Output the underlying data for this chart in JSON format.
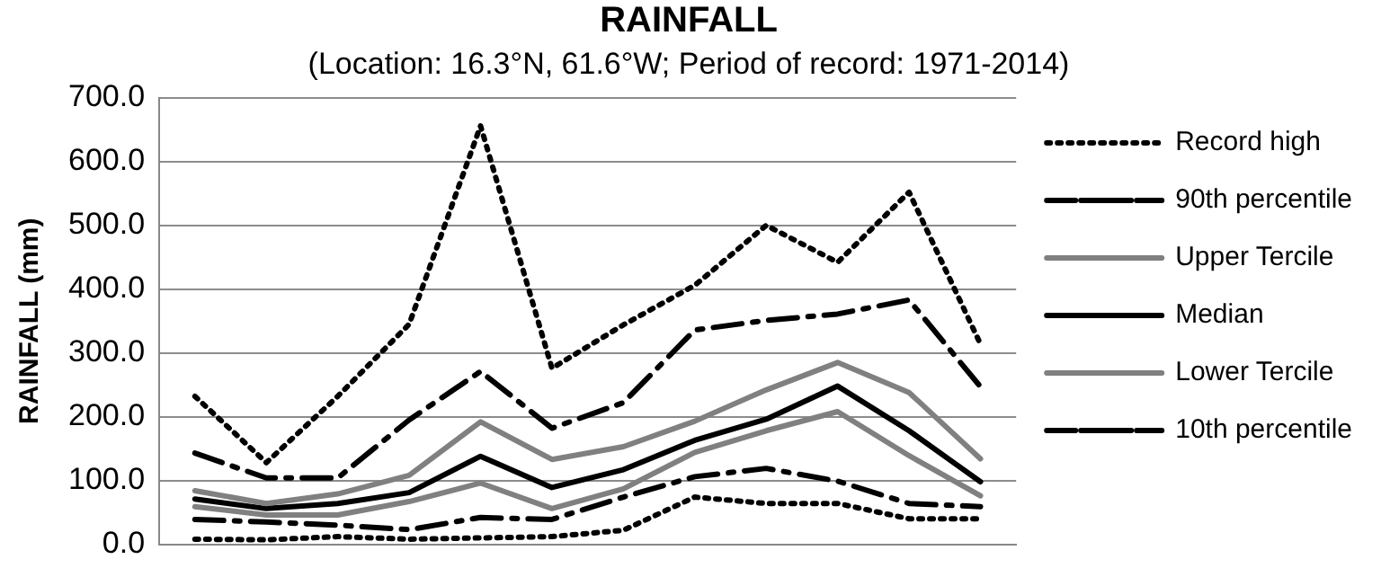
{
  "chart_data": {
    "type": "line",
    "title": "RAINFALL",
    "subtitle": "(Location: 16.3°N, 61.6°W; Period of record: 1971-2014)",
    "ylabel": "RAINFALL (mm)",
    "categories": [
      null,
      null,
      null,
      null,
      null,
      null,
      null,
      null,
      null,
      null,
      null,
      null
    ],
    "series": [
      {
        "name": "Record high",
        "color": "#000000",
        "line_style": "dotted",
        "values": [
          232,
          128,
          232,
          345,
          656,
          276,
          344,
          406,
          500,
          442,
          552,
          314
        ]
      },
      {
        "name": "90th percentile",
        "color": "#000000",
        "line_style": "dashed",
        "values": [
          143,
          104,
          104,
          195,
          271,
          182,
          222,
          336,
          351,
          361,
          383,
          247
        ]
      },
      {
        "name": "Upper Tercile",
        "color": "#808080",
        "line_style": "solid",
        "values": [
          84,
          64,
          79,
          108,
          192,
          133,
          153,
          193,
          242,
          285,
          238,
          134
        ]
      },
      {
        "name": "Median",
        "color": "#000000",
        "line_style": "solid",
        "values": [
          71,
          56,
          64,
          81,
          138,
          89,
          117,
          163,
          196,
          248,
          178,
          98
        ]
      },
      {
        "name": "Lower Tercile",
        "color": "#808080",
        "line_style": "solid",
        "values": [
          59,
          46,
          46,
          67,
          96,
          56,
          87,
          144,
          178,
          208,
          139,
          76
        ]
      },
      {
        "name": "10th percentile",
        "color": "#000000",
        "line_style": "dashed",
        "values": [
          39,
          35,
          30,
          23,
          42,
          39,
          74,
          106,
          119,
          99,
          64,
          59
        ]
      },
      {
        "color": "#000000",
        "line_style": "dotted",
        "values": [
          8,
          7,
          12,
          8,
          10,
          12,
          22,
          74,
          64,
          64,
          40,
          40
        ]
      }
    ],
    "ylim": [
      0,
      700
    ],
    "yticks": [
      {
        "value": 0,
        "label": "0.0"
      },
      {
        "value": 100,
        "label": "100.0"
      },
      {
        "value": 200,
        "label": "200.0"
      },
      {
        "value": 300,
        "label": "300.0"
      },
      {
        "value": 400,
        "label": "400.0"
      },
      {
        "value": 500,
        "label": "500.0"
      },
      {
        "value": 600,
        "label": "600.0"
      },
      {
        "value": 700,
        "label": "700.0"
      }
    ],
    "grid": "y",
    "legend": "right",
    "tick_labels": "y",
    "marker": "none"
  }
}
